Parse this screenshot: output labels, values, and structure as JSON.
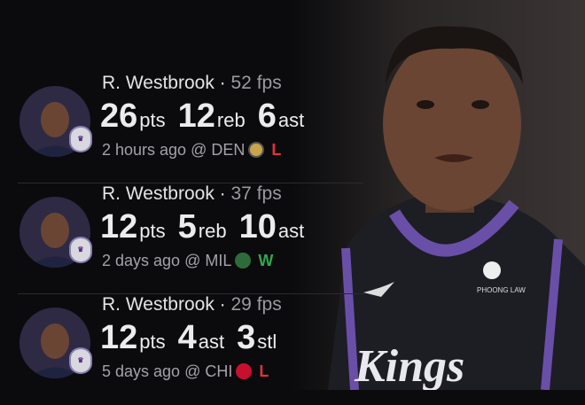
{
  "colors": {
    "loss": "#e0323a",
    "win": "#2fa84f",
    "kings_purple": "#5a2d81"
  },
  "feed": [
    {
      "name": "R. Westbrook",
      "fps": "52 fps",
      "stats": [
        {
          "n": "26",
          "u": "pts"
        },
        {
          "n": "12",
          "u": "reb"
        },
        {
          "n": "6",
          "u": "ast"
        }
      ],
      "when": "2 hours ago @ DEN",
      "team_icon": "nuggets-logo-icon",
      "result": "L"
    },
    {
      "name": "R. Westbrook",
      "fps": "37 fps",
      "stats": [
        {
          "n": "12",
          "u": "pts"
        },
        {
          "n": "5",
          "u": "reb"
        },
        {
          "n": "10",
          "u": "ast"
        }
      ],
      "when": "2 days ago @ MIL",
      "team_icon": "bucks-logo-icon",
      "result": "W"
    },
    {
      "name": "R. Westbrook",
      "fps": "29 fps",
      "stats": [
        {
          "n": "12",
          "u": "pts"
        },
        {
          "n": "4",
          "u": "ast"
        },
        {
          "n": "3",
          "u": "stl"
        }
      ],
      "when": "5 days ago @ CHI",
      "team_icon": "bulls-logo-icon",
      "result": "L"
    }
  ],
  "photo": {
    "jersey_text": "Kings",
    "sponsor": "PHOONG LAW"
  }
}
